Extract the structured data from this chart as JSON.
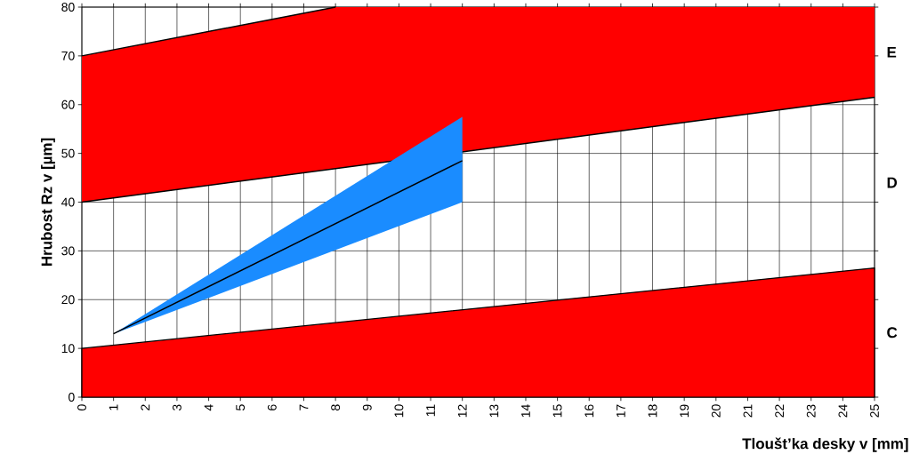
{
  "chart_data": {
    "type": "area",
    "xlabel": "Tloušt’ka desky v [mm]",
    "ylabel": "Hrubost Rz v [µm]",
    "xlim": [
      0,
      25
    ],
    "ylim": [
      0,
      80
    ],
    "xticks": [
      0,
      1,
      2,
      3,
      4,
      5,
      6,
      7,
      8,
      9,
      10,
      11,
      12,
      13,
      14,
      15,
      16,
      17,
      18,
      19,
      20,
      21,
      22,
      23,
      24,
      25
    ],
    "yticks": [
      0,
      10,
      20,
      30,
      40,
      50,
      60,
      70,
      80
    ],
    "grid": true,
    "annotations": [
      "E",
      "D",
      "C"
    ],
    "series": [
      {
        "color": "#ff0000",
        "x": [
          0,
          25
        ],
        "values": [
          10,
          26.5
        ]
      },
      {
        "type": "line",
        "color": "#ff0000",
        "x": [
          0,
          8,
          25
        ],
        "values": [
          null,
          null,
          null
        ],
        "lower": [
          40,
          46.9,
          61.5
        ],
        "upper": [
          70,
          80,
          80
        ]
      },
      {
        "type": "line",
        "color": "#000000",
        "x": [
          0,
          25
        ],
        "values": [
          40,
          61.5
        ]
      },
      {
        "type": "line",
        "color": "#000000",
        "x": [
          0,
          8
        ],
        "values": [
          70,
          80
        ]
      },
      {
        "type": "line",
        "color": "#1a8cff",
        "x": [
          1,
          12
        ],
        "values": [
          null,
          null
        ],
        "lower": [
          13,
          40
        ],
        "upper": [
          13,
          57.5
        ]
      },
      {
        "type": "line",
        "color": "#000000",
        "x": [
          1,
          12
        ],
        "values": [
          13,
          48.5
        ]
      }
    ]
  }
}
